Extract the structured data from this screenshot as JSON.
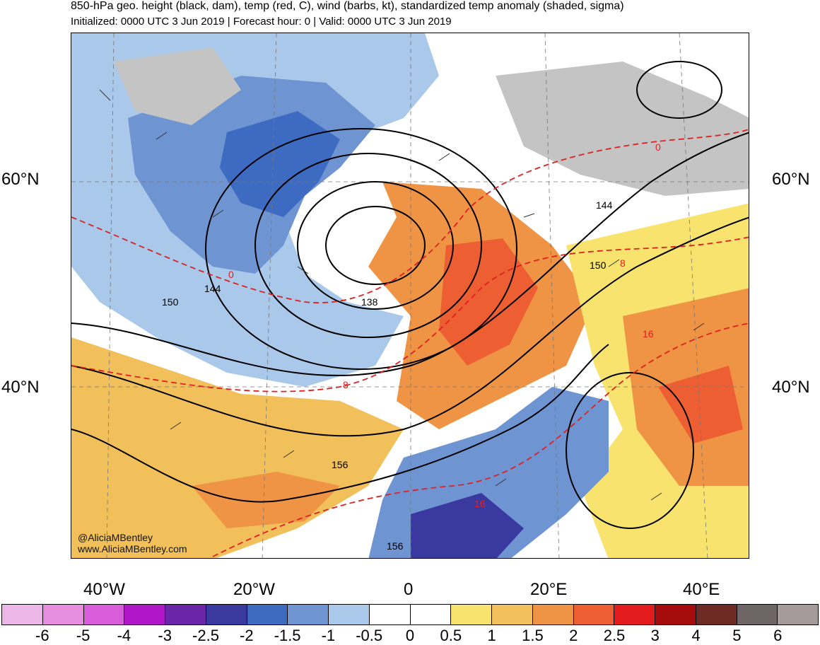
{
  "header": {
    "title": "850-hPa geo. height (black, dam), temp (red, C), wind (barbs, kt), standardized temp anomaly (shaded, sigma)",
    "subtitle": "Initialized: 0000 UTC 3 Jun 2019 | Forecast hour: 0 | Valid: 0000 UTC 3 Jun 2019"
  },
  "map": {
    "lat_labels": [
      {
        "id": "lat60",
        "text": "60°N"
      },
      {
        "id": "lat40",
        "text": "40°N"
      }
    ],
    "lon_labels": [
      {
        "id": "lon40w",
        "text": "40°W"
      },
      {
        "id": "lon20w",
        "text": "20°W"
      },
      {
        "id": "lon0",
        "text": "0"
      },
      {
        "id": "lon20e",
        "text": "20°E"
      },
      {
        "id": "lon40e",
        "text": "40°E"
      }
    ],
    "height_contour_labels": [
      "150",
      "144",
      "138",
      "144",
      "150",
      "156",
      "156"
    ],
    "temp_contour_labels": [
      "0",
      "8",
      "0",
      "8",
      "16",
      "16"
    ],
    "credit_handle": "@AliciaMBentley",
    "credit_url": "www.AliciaMBentley.com",
    "colors": {
      "cold_strong": "#3a4fb0",
      "cold": "#6a90d4",
      "cool": "#a8c8ea",
      "warm": "#f5d565",
      "warmer": "#f0a04a",
      "hot": "#e4572e",
      "land_gray": "#c4c4c4",
      "height_contour": "#000000",
      "temp_contour": "#e02020"
    }
  },
  "colorbar": {
    "colors": [
      "#ecb6e6",
      "#e78ee0",
      "#d95cdb",
      "#b116c9",
      "#6a25a8",
      "#3a39a0",
      "#3c6bc1",
      "#6f94d2",
      "#a9c8ea",
      "#ffffff",
      "#ffffff",
      "#f7e36e",
      "#f2c05a",
      "#ef9444",
      "#ed5f33",
      "#e21c1c",
      "#a60c0c",
      "#6e2a24",
      "#6e6666",
      "#a59b9b"
    ],
    "labels": [
      "-6",
      "-5",
      "-4",
      "-3",
      "-2.5",
      "-2",
      "-1.5",
      "-1",
      "-0.5",
      "0",
      "0.5",
      "1",
      "1.5",
      "2",
      "2.5",
      "3",
      "4",
      "5",
      "6"
    ]
  }
}
